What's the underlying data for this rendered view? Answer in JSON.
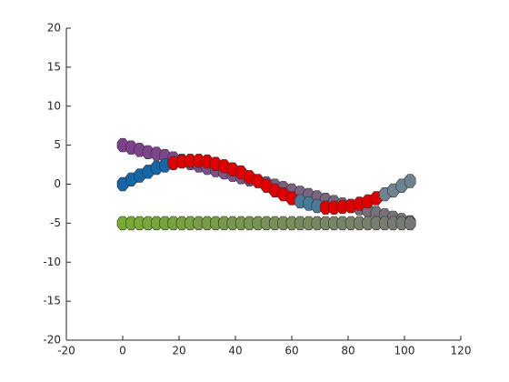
{
  "chart_data": {
    "type": "scatter",
    "xlim": [
      -20,
      120
    ],
    "xticks": [
      -20,
      0,
      20,
      40,
      60,
      80,
      100,
      120
    ],
    "ylim": [
      -20,
      20
    ],
    "yticks": [
      -20,
      -15,
      -10,
      -5,
      0,
      5,
      10,
      15,
      20
    ],
    "x": [
      0,
      3,
      6,
      9,
      12,
      15,
      18,
      21,
      24,
      27,
      30,
      33,
      36,
      39,
      42,
      45,
      48,
      51,
      54,
      57,
      60,
      63,
      66,
      69,
      72,
      75,
      78,
      81,
      84,
      87,
      90,
      93,
      96,
      99,
      102
    ],
    "series": [
      {
        "color": "#7e3f8f",
        "end_color": "#777777",
        "values": [
          5.0,
          4.7,
          4.4,
          4.1,
          3.9,
          3.6,
          3.3,
          3.0,
          2.7,
          2.4,
          2.1,
          1.8,
          1.5,
          1.2,
          0.9,
          0.6,
          0.4,
          0.1,
          -0.2,
          -0.5,
          -0.8,
          -1.1,
          -1.4,
          -1.7,
          -2.0,
          -2.3,
          -2.6,
          -2.8,
          -3.1,
          -3.4,
          -3.7,
          -4.0,
          -4.3,
          -4.6,
          -4.9
        ]
      },
      {
        "color": "#77ac30",
        "end_color": "#777777",
        "values": [
          -5,
          -5,
          -5,
          -5,
          -5,
          -5,
          -5,
          -5,
          -5,
          -5,
          -5,
          -5,
          -5,
          -5,
          -5,
          -5,
          -5,
          -5,
          -5,
          -5,
          -5,
          -5,
          -5,
          -5,
          -5,
          -5,
          -5,
          -5,
          -5,
          -5,
          -5,
          -5,
          -5,
          -5,
          -5
        ]
      },
      {
        "colors": [
          "#1466a8",
          "#1466a8",
          "#1466a8",
          "#1466a8",
          "#1466a8",
          "#1466a8",
          "#e00000",
          "#e00000",
          "#e00000",
          "#e00000",
          "#e00000",
          "#e00000",
          "#e00000",
          "#e00000",
          "#e00000",
          "#e00000",
          "#e00000",
          "#e00000",
          "#e00000",
          "#e00000",
          "#e00000",
          "#4a7a9a",
          "#4a7a9a",
          "#4a7a9a",
          "#e00000",
          "#e00000",
          "#e00000",
          "#e00000",
          "#e00000",
          "#e00000",
          "#e00000",
          "#6e8290",
          "#6e8290",
          "#6e8290",
          "#6e8290"
        ],
        "values": [
          0,
          0.6,
          1.1,
          1.6,
          2.1,
          2.4,
          2.7,
          2.9,
          3.0,
          3.0,
          2.9,
          2.6,
          2.3,
          1.9,
          1.5,
          0.9,
          0.4,
          -0.2,
          -0.8,
          -1.3,
          -1.8,
          -2.2,
          -2.5,
          -2.8,
          -3.0,
          -3.0,
          -2.9,
          -2.8,
          -2.5,
          -2.2,
          -1.8,
          -1.3,
          -0.8,
          -0.2,
          0.4
        ]
      }
    ]
  }
}
